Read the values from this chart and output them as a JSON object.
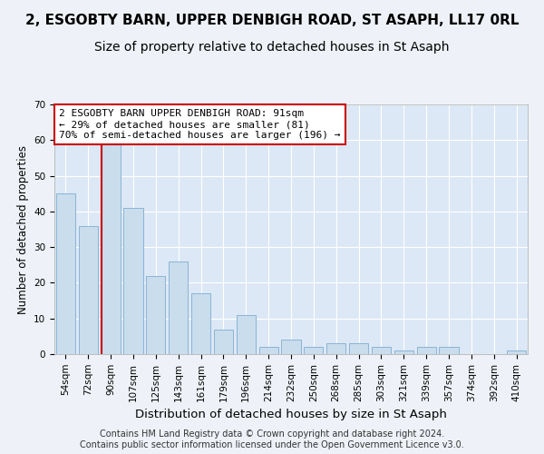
{
  "title": "2, ESGOBTY BARN, UPPER DENBIGH ROAD, ST ASAPH, LL17 0RL",
  "subtitle": "Size of property relative to detached houses in St Asaph",
  "xlabel": "Distribution of detached houses by size in St Asaph",
  "ylabel": "Number of detached properties",
  "bar_labels": [
    "54sqm",
    "72sqm",
    "90sqm",
    "107sqm",
    "125sqm",
    "143sqm",
    "161sqm",
    "179sqm",
    "196sqm",
    "214sqm",
    "232sqm",
    "250sqm",
    "268sqm",
    "285sqm",
    "303sqm",
    "321sqm",
    "339sqm",
    "357sqm",
    "374sqm",
    "392sqm",
    "410sqm"
  ],
  "bar_values": [
    45,
    36,
    59,
    41,
    22,
    26,
    17,
    7,
    11,
    2,
    4,
    2,
    3,
    3,
    2,
    1,
    2,
    2,
    0,
    0,
    1
  ],
  "bar_color": "#c9dded",
  "bar_edgecolor": "#8ab4d4",
  "vline_x_index": 2,
  "vline_color": "#cc0000",
  "annotation_text": "2 ESGOBTY BARN UPPER DENBIGH ROAD: 91sqm\n← 29% of detached houses are smaller (81)\n70% of semi-detached houses are larger (196) →",
  "annotation_box_facecolor": "white",
  "annotation_box_edgecolor": "#cc0000",
  "annotation_fontsize": 8,
  "title_fontsize": 11,
  "subtitle_fontsize": 10,
  "xlabel_fontsize": 9.5,
  "ylabel_fontsize": 8.5,
  "tick_fontsize": 7.5,
  "ylim": [
    0,
    70
  ],
  "yticks": [
    0,
    10,
    20,
    30,
    40,
    50,
    60,
    70
  ],
  "footer_text": "Contains HM Land Registry data © Crown copyright and database right 2024.\nContains public sector information licensed under the Open Government Licence v3.0.",
  "footer_fontsize": 7,
  "background_color": "#eef2f8",
  "grid_color": "#ffffff",
  "axes_facecolor": "#dce8f5"
}
